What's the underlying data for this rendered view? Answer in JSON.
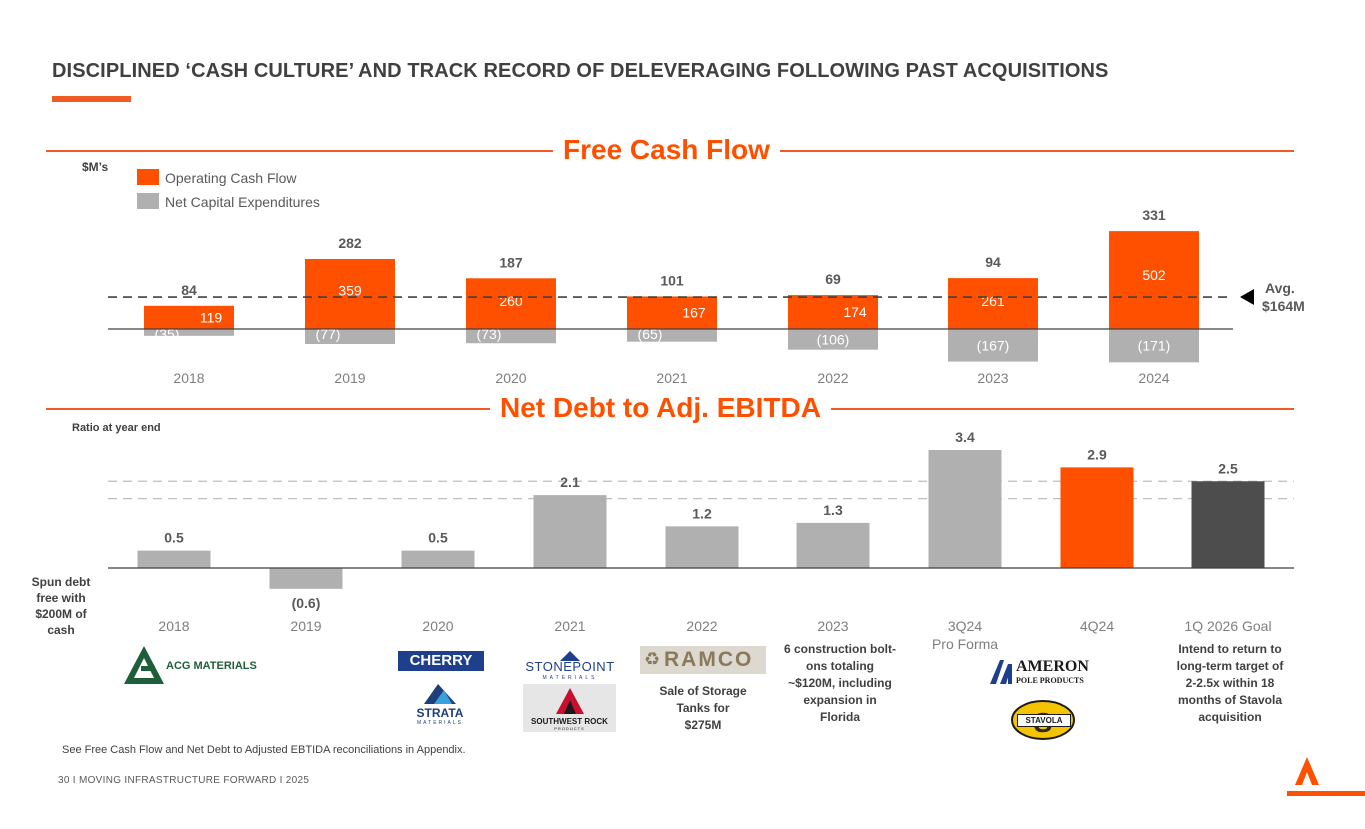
{
  "header": {
    "title": "DISCIPLINED ‘CASH CULTURE’ AND TRACK RECORD OF DELEVERAGING FOLLOWING PAST ACQUISITIONS"
  },
  "colors": {
    "accent": "#ff5000",
    "gray": "#b0b0b0",
    "dark": "#4d4d4d"
  },
  "fcf": {
    "title": "Free Cash Flow",
    "unit": "$M’s",
    "avg_label_1": "Avg.",
    "avg_label_2": "$164M",
    "legend": [
      "Operating Cash Flow",
      "Net Capital Expenditures"
    ]
  },
  "debt": {
    "title": "Net Debt to Adj. EBITDA",
    "unit": "Ratio at year end"
  },
  "chart_data": [
    {
      "type": "bar",
      "title": "Free Cash Flow",
      "ylabel": "$M’s",
      "categories": [
        "2018",
        "2019",
        "2020",
        "2021",
        "2022",
        "2023",
        "2024"
      ],
      "series": [
        {
          "name": "Operating Cash Flow",
          "values": [
            119,
            359,
            260,
            167,
            174,
            261,
            502
          ]
        },
        {
          "name": "Net Capital Expenditures",
          "values": [
            -35,
            -77,
            -73,
            -65,
            -106,
            -167,
            -171
          ]
        }
      ],
      "labels": {
        "totals": [
          "84",
          "282",
          "187",
          "101",
          "69",
          "94",
          "331"
        ],
        "operating": [
          "119",
          "359",
          "260",
          "167",
          "174",
          "261",
          "502"
        ],
        "capex": [
          "(35)",
          "(77)",
          "(73)",
          "(65)",
          "(106)",
          "(167)",
          "(171)"
        ]
      },
      "free_cash_flow": [
        84,
        282,
        187,
        101,
        69,
        94,
        331
      ],
      "average_free_cash_flow": 164
    },
    {
      "type": "bar",
      "title": "Net Debt to Adj. EBITDA",
      "ylabel": "Ratio at year end",
      "categories": [
        "2018",
        "2019",
        "2020",
        "2021",
        "2022",
        "2023",
        "3Q24",
        "4Q24",
        "1Q 2026 Goal"
      ],
      "category_sublabels": [
        "",
        "",
        "",
        "",
        "",
        "",
        "Pro Forma",
        "",
        ""
      ],
      "values": [
        0.5,
        -0.6,
        0.5,
        2.1,
        1.2,
        1.3,
        3.4,
        2.9,
        2.5
      ],
      "value_labels": [
        "0.5",
        "(0.6)",
        "0.5",
        "2.1",
        "1.2",
        "1.3",
        "3.4",
        "2.9",
        "2.5"
      ],
      "bar_colors": [
        "gray",
        "gray",
        "gray",
        "gray",
        "gray",
        "gray",
        "gray",
        "orange",
        "dark"
      ],
      "target_range": [
        2.0,
        2.5
      ]
    }
  ],
  "annotations": {
    "spun_debt": [
      "Spun debt",
      "free with",
      "$200M of",
      "cash"
    ],
    "sale_storage": [
      "Sale of Storage",
      "Tanks for",
      "$275M"
    ],
    "construction": [
      "6 construction bolt-",
      "ons totaling",
      "~$120M, including",
      "expansion in",
      "Florida"
    ],
    "goal": [
      "Intend to return to",
      "long-term target of",
      "2-2.5x within 18",
      "months of Stavola",
      "acquisition"
    ]
  },
  "logos": {
    "acg": "ACG MATERIALS",
    "cherry": "CHERRY",
    "strata": "STRATA",
    "strata_sub": "MATERIALS",
    "stonepoint": "STONEPOINT",
    "stonepoint_sub": "MATERIALS",
    "southwest": "SOUTHWEST ROCK",
    "southwest_sub": "PRODUCTS",
    "ramco": "RAMCO",
    "ameron": "AMERON",
    "ameron_sub": "POLE PRODUCTS",
    "stavola": "STAVOLA"
  },
  "footnote": "See Free Cash Flow and Net Debt to Adjusted EBTIDA reconciliations in Appendix.",
  "footer": "30  I   MOVING INFRASTRUCTURE FORWARD   I   2025"
}
